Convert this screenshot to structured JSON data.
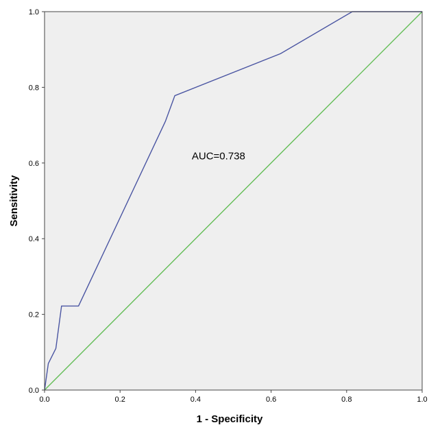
{
  "chart_data": {
    "type": "line",
    "title": "",
    "xlabel": "1 - Specificity",
    "ylabel": "Sensitivity",
    "xlim": [
      0.0,
      1.0
    ],
    "ylim": [
      0.0,
      1.0
    ],
    "xticks": [
      "0.0",
      "0.2",
      "0.4",
      "0.6",
      "0.8",
      "1.0"
    ],
    "yticks": [
      "0.0",
      "0.2",
      "0.4",
      "0.6",
      "0.8",
      "1.0"
    ],
    "grid": false,
    "legend": "none",
    "plot_background": "#efefef",
    "annotation": "AUC=0.738",
    "annotation_at": [
      0.39,
      0.61
    ],
    "series": [
      {
        "color": "#4a55a2",
        "x": [
          0.0,
          0.01,
          0.015,
          0.03,
          0.045,
          0.09,
          0.32,
          0.345,
          0.625,
          0.815,
          1.0
        ],
        "y": [
          0.0,
          0.07,
          0.08,
          0.11,
          0.222,
          0.222,
          0.71,
          0.778,
          0.889,
          1.0,
          1.0
        ]
      },
      {
        "color": "#62bd55",
        "x": [
          0.0,
          1.0
        ],
        "y": [
          0.0,
          1.0
        ]
      }
    ]
  }
}
